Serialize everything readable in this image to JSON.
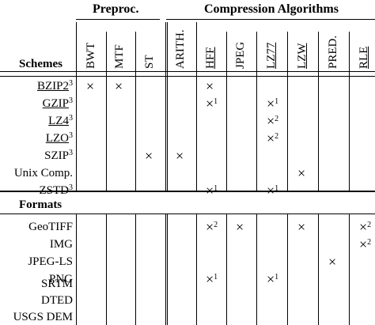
{
  "groups": {
    "preproc": "Preproc.",
    "compression": "Compression Algorithms"
  },
  "columns": [
    {
      "label": "BWT",
      "underline": false
    },
    {
      "label": "MTF",
      "underline": false
    },
    {
      "label": "ST",
      "underline": false
    },
    {
      "label": "ARITH.",
      "underline": false
    },
    {
      "label": "HFF",
      "underline": true
    },
    {
      "label": "JPEG",
      "underline": false
    },
    {
      "label": "LZ77",
      "underline": true
    },
    {
      "label": "LZW",
      "underline": true
    },
    {
      "label": "PRED.",
      "underline": false
    },
    {
      "label": "RLE",
      "underline": true
    }
  ],
  "sections": {
    "schemes": "Schemes",
    "formats": "Formats"
  },
  "mark_symbol": "×",
  "schemes": [
    {
      "name": "BZIP2",
      "sup": "3",
      "underline": true,
      "marks": {
        "0": "",
        "1": "",
        "4": ""
      }
    },
    {
      "name": "GZIP",
      "sup": "3",
      "underline": true,
      "marks": {
        "4": "1",
        "6": "1"
      }
    },
    {
      "name": "LZ4",
      "sup": "3",
      "underline": true,
      "marks": {
        "6": "2"
      }
    },
    {
      "name": "LZO",
      "sup": "3",
      "underline": true,
      "marks": {
        "6": "2"
      }
    },
    {
      "name": "SZIP",
      "sup": "3",
      "underline": false,
      "marks": {
        "2": "",
        "3": ""
      }
    },
    {
      "name": "Unix Comp.",
      "sup": "",
      "underline": false,
      "marks": {
        "7": ""
      }
    },
    {
      "name": "ZSTD",
      "sup": "3",
      "underline": false,
      "marks": {
        "4": "1",
        "6": "1"
      }
    }
  ],
  "formats": [
    {
      "name": "GeoTIFF",
      "sup": "",
      "underline": false,
      "marks": {
        "4": "2",
        "5": "",
        "7": "",
        "9": "2"
      }
    },
    {
      "name": "IMG",
      "sup": "",
      "underline": false,
      "marks": {
        "9": "2"
      }
    },
    {
      "name": "JPEG-LS",
      "sup": "",
      "underline": false,
      "marks": {
        "8": ""
      }
    },
    {
      "name": "PNG",
      "sup": "",
      "underline": false,
      "marks": {
        "4": "1",
        "6": "1"
      }
    },
    {
      "name": "SRTM",
      "sup": "",
      "underline": false,
      "marks": {}
    },
    {
      "name": "DTED",
      "sup": "",
      "underline": false,
      "marks": {}
    },
    {
      "name": "USGS DEM",
      "sup": "",
      "underline": false,
      "marks": {}
    }
  ]
}
